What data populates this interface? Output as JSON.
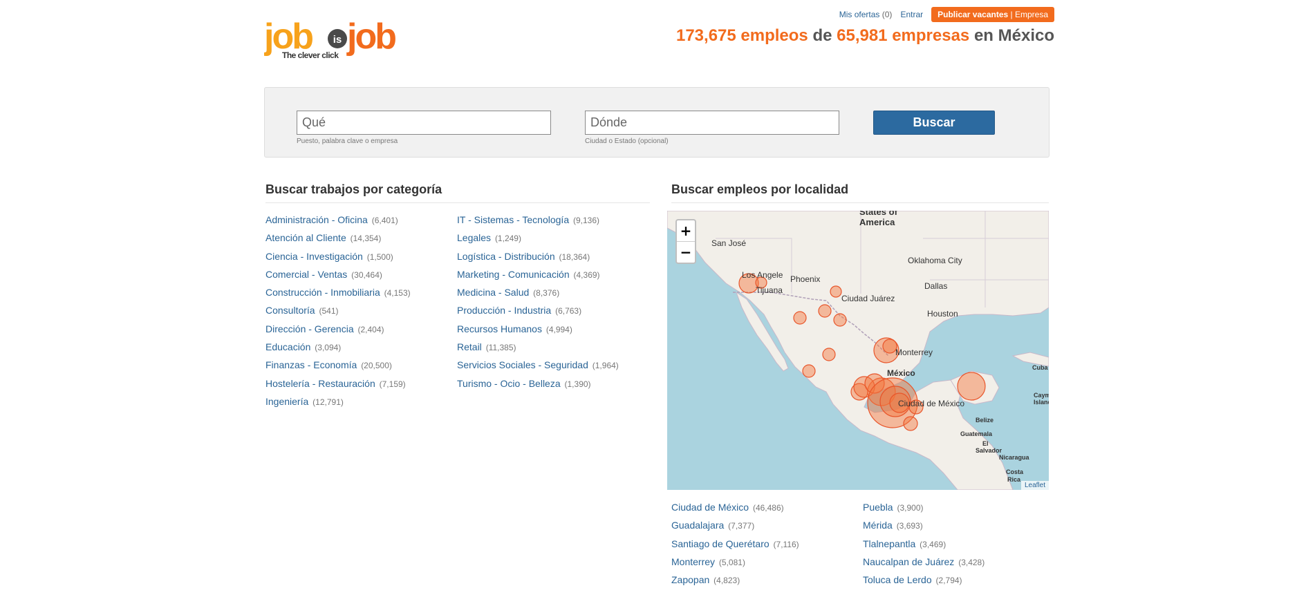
{
  "header": {
    "logo": {
      "word1": "job",
      "is": "is",
      "word2": "job",
      "tagline": "The clever click"
    },
    "links": {
      "mis_ofertas": "Mis ofertas",
      "mis_ofertas_count": "(0)",
      "entrar": "Entrar",
      "publicar": "Publicar vacantes",
      "publicar_sep": " | Empresa"
    },
    "headline": {
      "jobs": "173,675 empleos",
      "de": " de ",
      "companies": "65,981 empresas",
      "en": " en México"
    }
  },
  "search": {
    "what_placeholder": "Qué",
    "what_hint": "Puesto, palabra clave o empresa",
    "where_placeholder": "Dónde",
    "where_hint": "Ciudad o Estado (opcional)",
    "button": "Buscar"
  },
  "categories": {
    "title": "Buscar trabajos por categoría",
    "col1": [
      {
        "label": "Administración - Oficina",
        "count": "(6,401)"
      },
      {
        "label": "Atención al Cliente",
        "count": "(14,354)"
      },
      {
        "label": "Ciencia - Investigación",
        "count": "(1,500)"
      },
      {
        "label": "Comercial - Ventas",
        "count": "(30,464)"
      },
      {
        "label": "Construcción - Inmobiliaria",
        "count": "(4,153)"
      },
      {
        "label": "Consultoría",
        "count": "(541)"
      },
      {
        "label": "Dirección - Gerencia",
        "count": "(2,404)"
      },
      {
        "label": "Educación",
        "count": "(3,094)"
      },
      {
        "label": "Finanzas - Economía",
        "count": "(20,500)"
      },
      {
        "label": "Hostelería - Restauración",
        "count": "(7,159)"
      },
      {
        "label": "Ingeniería",
        "count": "(12,791)"
      }
    ],
    "col2": [
      {
        "label": "IT - Sistemas - Tecnología",
        "count": "(9,136)"
      },
      {
        "label": "Legales",
        "count": "(1,249)"
      },
      {
        "label": "Logística - Distribución",
        "count": "(18,364)"
      },
      {
        "label": "Marketing - Comunicación",
        "count": "(4,369)"
      },
      {
        "label": "Medicina - Salud",
        "count": "(8,376)"
      },
      {
        "label": "Producción - Industria",
        "count": "(6,763)"
      },
      {
        "label": "Recursos Humanos",
        "count": "(4,994)"
      },
      {
        "label": "Retail",
        "count": "(11,385)"
      },
      {
        "label": "Servicios Sociales - Seguridad",
        "count": "(1,964)"
      },
      {
        "label": "Turismo - Ocio - Belleza",
        "count": "(1,390)"
      }
    ]
  },
  "locations": {
    "title": "Buscar empleos por localidad",
    "map": {
      "zoom_in": "+",
      "zoom_out": "−",
      "attribution": "Leaflet",
      "labels": {
        "states_of": "States of",
        "america": "America",
        "san_jose": "San José",
        "los_angeles": "Los Angele",
        "tijuana": "Tijuana",
        "phoenix": "Phoenix",
        "oklahoma": "Oklahoma City",
        "dallas": "Dallas",
        "ciudad_juarez": "Ciudad Juárez",
        "houston": "Houston",
        "monterrey": "Monterrey",
        "mexico": "México",
        "ciudad_de_mexico": "Ciudad de México",
        "belize": "Belize",
        "guatemala": "Guatemala",
        "el": "El",
        "salvador": "Salvador",
        "nicaragua": "Nicaragua",
        "costa": "Costa",
        "rica": "Rica",
        "cuba": "Cuba",
        "cayman": "Cayma",
        "islands": "Islands"
      }
    },
    "col1": [
      {
        "label": "Ciudad de México",
        "count": "(46,486)"
      },
      {
        "label": "Guadalajara",
        "count": "(7,377)"
      },
      {
        "label": "Santiago de Querétaro",
        "count": "(7,116)"
      },
      {
        "label": "Monterrey",
        "count": "(5,081)"
      },
      {
        "label": "Zapopan",
        "count": "(4,823)"
      }
    ],
    "col2": [
      {
        "label": "Puebla",
        "count": "(3,900)"
      },
      {
        "label": "Mérida",
        "count": "(3,693)"
      },
      {
        "label": "Tlalnepantla",
        "count": "(3,469)"
      },
      {
        "label": "Naucalpan de Juárez",
        "count": "(3,428)"
      },
      {
        "label": "Toluca de Lerdo",
        "count": "(2,794)"
      }
    ]
  },
  "colors": {
    "accent": "#f26b1d",
    "link": "#2a6496",
    "button": "#2c6aa0",
    "marker": "#f4763c"
  }
}
